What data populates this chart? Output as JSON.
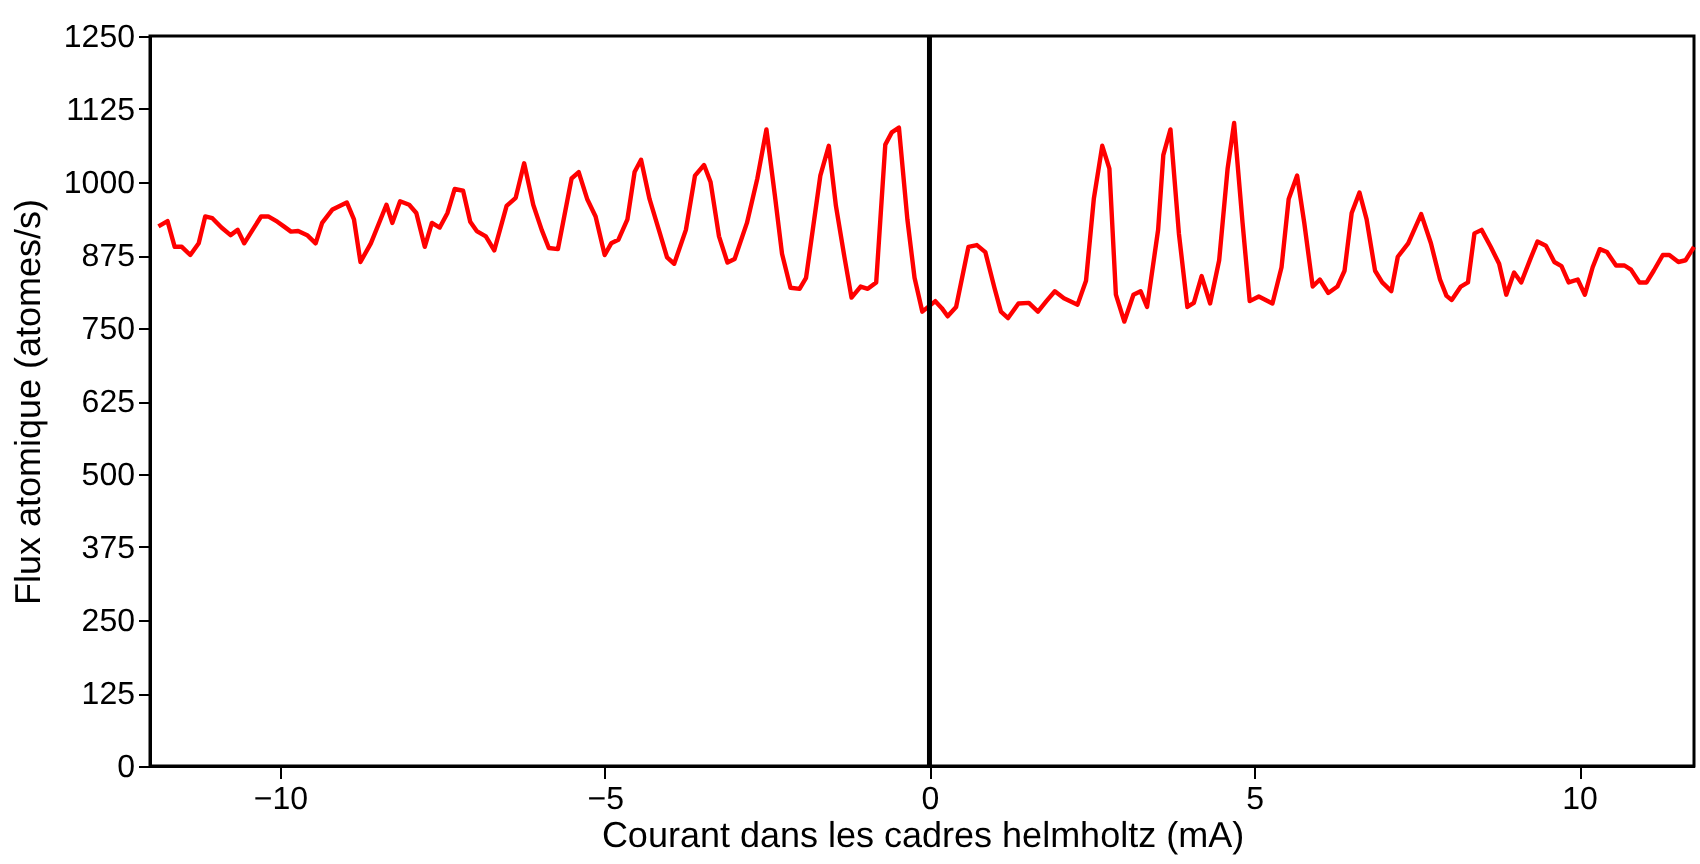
{
  "chart_data": {
    "type": "line",
    "xlabel": "Courant dans les cadres helmholtz (mA)",
    "ylabel": "Flux atomique (atomes/s)",
    "xlim": [
      -12,
      11.77
    ],
    "xticks": [
      -10,
      -5,
      0,
      5,
      10
    ],
    "ylim": [
      0,
      1250
    ],
    "yticks": [
      0,
      125,
      250,
      375,
      500,
      625,
      750,
      875,
      1000,
      1125,
      1250
    ],
    "grid": false,
    "marker": "none",
    "line_style": "solid",
    "ref_lines": [
      {
        "axis": "x",
        "value": 0,
        "color": "#000000"
      }
    ],
    "series": [
      {
        "color": "#ff0000",
        "x": [
          -11.87,
          -11.73,
          -11.62,
          -11.51,
          -11.38,
          -11.25,
          -11.15,
          -11.04,
          -10.9,
          -10.76,
          -10.65,
          -10.55,
          -10.42,
          -10.29,
          -10.18,
          -10.04,
          -9.94,
          -9.83,
          -9.72,
          -9.58,
          -9.45,
          -9.35,
          -9.19,
          -8.97,
          -8.86,
          -8.76,
          -8.6,
          -8.36,
          -8.27,
          -8.15,
          -8.01,
          -7.9,
          -7.77,
          -7.66,
          -7.54,
          -7.42,
          -7.31,
          -7.18,
          -7.07,
          -6.97,
          -6.83,
          -6.7,
          -6.51,
          -6.37,
          -6.24,
          -6.1,
          -5.97,
          -5.86,
          -5.72,
          -5.51,
          -5.4,
          -5.27,
          -5.14,
          -5.0,
          -4.9,
          -4.79,
          -4.65,
          -4.54,
          -4.44,
          -4.31,
          -4.15,
          -4.04,
          -3.93,
          -3.75,
          -3.61,
          -3.47,
          -3.37,
          -3.24,
          -3.11,
          -3.0,
          -2.81,
          -2.65,
          -2.51,
          -2.38,
          -2.27,
          -2.14,
          -2.0,
          -1.9,
          -1.68,
          -1.55,
          -1.44,
          -1.31,
          -1.2,
          -1.06,
          -0.95,
          -0.82,
          -0.68,
          -0.58,
          -0.47,
          -0.34,
          -0.23,
          -0.11,
          0.09,
          0.19,
          0.28,
          0.41,
          0.6,
          0.73,
          0.86,
          1.0,
          1.1,
          1.21,
          1.37,
          1.53,
          1.67,
          1.8,
          1.93,
          2.07,
          2.28,
          2.41,
          2.53,
          2.66,
          2.77,
          2.87,
          3.0,
          3.14,
          3.25,
          3.35,
          3.52,
          3.6,
          3.71,
          3.84,
          3.97,
          4.07,
          4.19,
          4.32,
          4.46,
          4.59,
          4.69,
          4.82,
          4.93,
          5.07,
          5.28,
          5.42,
          5.53,
          5.66,
          5.77,
          5.9,
          6.01,
          6.14,
          6.28,
          6.39,
          6.5,
          6.62,
          6.73,
          6.86,
          6.97,
          7.11,
          7.21,
          7.37,
          7.57,
          7.72,
          7.86,
          7.96,
          8.04,
          8.18,
          8.29,
          8.39,
          8.5,
          8.64,
          8.77,
          8.88,
          9.0,
          9.11,
          9.25,
          9.36,
          9.49,
          9.62,
          9.73,
          9.84,
          9.98,
          10.09,
          10.21,
          10.32,
          10.43,
          10.57,
          10.7,
          10.8,
          10.93,
          11.04,
          11.15,
          11.29,
          11.39,
          11.53,
          11.64,
          11.77
        ],
        "values": [
          924,
          933,
          889,
          889,
          875,
          895,
          941,
          938,
          922,
          909,
          918,
          895,
          918,
          941,
          941,
          932,
          924,
          915,
          916,
          909,
          895,
          930,
          953,
          965,
          936,
          863,
          895,
          961,
          930,
          967,
          961,
          947,
          889,
          930,
          922,
          947,
          988,
          985,
          932,
          916,
          907,
          883,
          959,
          973,
          1032,
          961,
          918,
          887,
          885,
          1006,
          1017,
          971,
          941,
          875,
          895,
          901,
          936,
          1017,
          1038,
          971,
          912,
          871,
          860,
          918,
          1011,
          1029,
          1000,
          907,
          862,
          868,
          930,
          1006,
          1090,
          977,
          877,
          819,
          817,
          836,
          1011,
          1062,
          959,
          872,
          802,
          821,
          817,
          828,
          1064,
          1085,
          1093,
          936,
          836,
          778,
          796,
          784,
          770,
          786,
          889,
          892,
          880,
          819,
          778,
          767,
          792,
          793,
          778,
          796,
          813,
          801,
          790,
          831,
          971,
          1062,
          1023,
          807,
          761,
          807,
          813,
          786,
          918,
          1046,
          1090,
          912,
          786,
          793,
          839,
          792,
          866,
          1023,
          1101,
          930,
          796,
          804,
          792,
          854,
          971,
          1011,
          930,
          821,
          833,
          810,
          821,
          848,
          947,
          982,
          936,
          848,
          828,
          813,
          872,
          895,
          945,
          895,
          833,
          805,
          798,
          821,
          828,
          912,
          918,
          889,
          860,
          807,
          845,
          828,
          868,
          898,
          891,
          863,
          856,
          828,
          833,
          807,
          854,
          885,
          880,
          857,
          857,
          850,
          828,
          828,
          848,
          875,
          875,
          863,
          866,
          889
        ]
      }
    ]
  }
}
